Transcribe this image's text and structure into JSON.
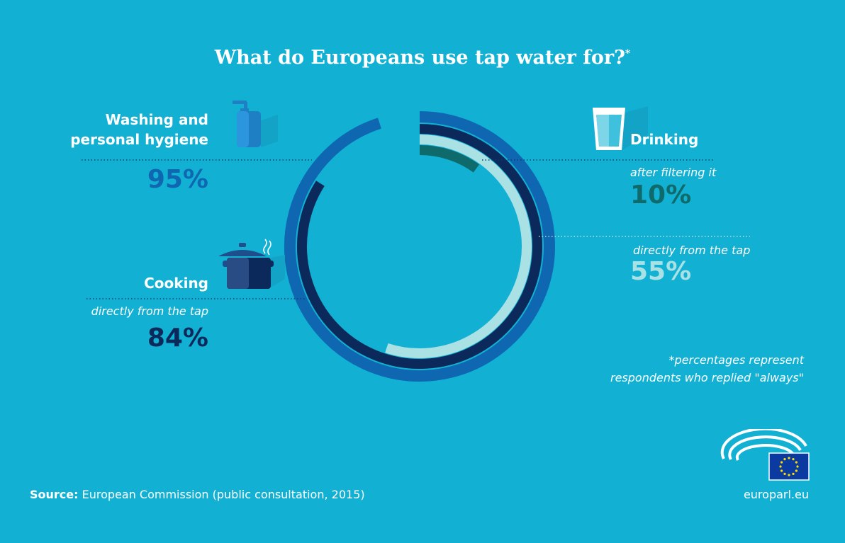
{
  "title": "What do Europeans use tap water for?",
  "title_mark": "*",
  "chart_data": {
    "type": "pie",
    "variant": "concentric-rings",
    "series": [
      {
        "name": "Washing and personal hygiene",
        "value": 95,
        "color": "#0f67b1"
      },
      {
        "name": "Cooking - directly from the tap",
        "value": 84,
        "color": "#0b2a5b"
      },
      {
        "name": "Drinking - directly from the tap",
        "value": 55,
        "color": "#a9e1e5"
      },
      {
        "name": "Drinking - after filtering it",
        "value": 10,
        "color": "#0f6b6b"
      }
    ],
    "unit": "%"
  },
  "labels": {
    "washing": {
      "title_line1": "Washing and",
      "title_line2": "personal hygiene",
      "percent": "95%"
    },
    "cooking": {
      "title": "Cooking",
      "sub": "directly from the tap",
      "percent": "84%"
    },
    "drinking": {
      "title": "Drinking"
    },
    "drinking_filtered": {
      "sub": "after filtering it",
      "percent": "10%"
    },
    "drinking_tap": {
      "sub": "directly from the tap",
      "percent": "55%"
    }
  },
  "note": {
    "line1": "*percentages represent",
    "line2": "respondents who replied \"always\""
  },
  "source": {
    "label": "Source:",
    "text": "European Commission (public consultation, 2015)"
  },
  "brand": "europarl.eu",
  "colors": {
    "background": "#12b1d4",
    "washing": "#0f67b1",
    "cooking": "#0b2a5b",
    "drinking_tap": "#a9e1e5",
    "drinking_filtered": "#0f6b6b"
  },
  "icons": [
    "soap-dispenser-icon",
    "cooking-pot-icon",
    "water-glass-icon",
    "european-parliament-logo"
  ]
}
